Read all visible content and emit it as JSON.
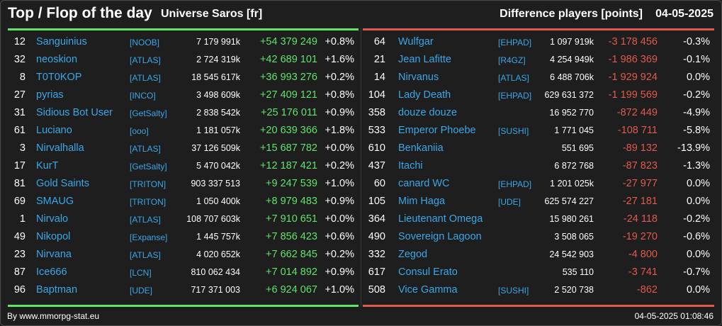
{
  "header": {
    "title": "Top / Flop of the day",
    "subtitle": "Universe Saros [fr]",
    "difference_label": "Difference players [points]",
    "date": "04-05-2025"
  },
  "colors": {
    "positive": "#5fe36b",
    "negative": "#e05a4d",
    "name": "#3aa7e8"
  },
  "top": [
    {
      "rank": "12",
      "name": "Sanguinius",
      "alliance": "[NOOB]",
      "points": "7 179 991k",
      "diff": "+54 379 249",
      "pct": "+0.8%"
    },
    {
      "rank": "32",
      "name": "neoskion",
      "alliance": "[ATLAS]",
      "points": "2 724 319k",
      "diff": "+42 689 101",
      "pct": "+1.6%"
    },
    {
      "rank": "8",
      "name": "T0T0KOP",
      "alliance": "[ATLAS]",
      "points": "18 545 617k",
      "diff": "+36 993 276",
      "pct": "+0.2%"
    },
    {
      "rank": "27",
      "name": "pyrias",
      "alliance": "[INCO]",
      "points": "3 498 609k",
      "diff": "+27 409 121",
      "pct": "+0.8%"
    },
    {
      "rank": "31",
      "name": "Sidious Bot User",
      "alliance": "[GetSalty]",
      "points": "2 838 542k",
      "diff": "+25 176 011",
      "pct": "+0.9%"
    },
    {
      "rank": "61",
      "name": "Luciano",
      "alliance": "[ooo]",
      "points": "1 181 057k",
      "diff": "+20 639 366",
      "pct": "+1.8%"
    },
    {
      "rank": "3",
      "name": "Nirvalhalla",
      "alliance": "[ATLAS]",
      "points": "37 126 509k",
      "diff": "+15 687 782",
      "pct": "+0.0%"
    },
    {
      "rank": "17",
      "name": "KurT",
      "alliance": "[GetSalty]",
      "points": "5 470 042k",
      "diff": "+12 187 421",
      "pct": "+0.2%"
    },
    {
      "rank": "81",
      "name": "Gold Saints",
      "alliance": "[TRITON]",
      "points": "903 337 513",
      "diff": "+9 247 539",
      "pct": "+1.0%"
    },
    {
      "rank": "69",
      "name": "SMAUG",
      "alliance": "[TRITON]",
      "points": "1 050 400k",
      "diff": "+8 979 483",
      "pct": "+0.9%"
    },
    {
      "rank": "1",
      "name": "Nirvalo",
      "alliance": "[ATLAS]",
      "points": "108 707 603k",
      "diff": "+7 910 651",
      "pct": "+0.0%"
    },
    {
      "rank": "49",
      "name": "Nikopol",
      "alliance": "[Expanse]",
      "points": "1 445 757k",
      "diff": "+7 856 423",
      "pct": "+0.6%"
    },
    {
      "rank": "23",
      "name": "Nirvana",
      "alliance": "[ATLAS]",
      "points": "4 020 652k",
      "diff": "+7 662 845",
      "pct": "+0.2%"
    },
    {
      "rank": "87",
      "name": "Ice666",
      "alliance": "[LCN]",
      "points": "810 062 434",
      "diff": "+7 014 892",
      "pct": "+0.9%"
    },
    {
      "rank": "96",
      "name": "Baptman",
      "alliance": "[UDE]",
      "points": "717 371 003",
      "diff": "+6 924 067",
      "pct": "+1.0%"
    }
  ],
  "flop": [
    {
      "rank": "64",
      "name": "Wulfgar",
      "alliance": "[EHPAD]",
      "points": "1 097 919k",
      "diff": "-3 178 456",
      "pct": "-0.3%"
    },
    {
      "rank": "21",
      "name": "Jean Lafitte",
      "alliance": "[R4GZ]",
      "points": "4 254 949k",
      "diff": "-1 986 369",
      "pct": "-0.1%"
    },
    {
      "rank": "14",
      "name": "Nirvanus",
      "alliance": "[ATLAS]",
      "points": "6 488 706k",
      "diff": "-1 929 924",
      "pct": "0.0%"
    },
    {
      "rank": "104",
      "name": "Lady Death",
      "alliance": "[EHPAD]",
      "points": "629 631 372",
      "diff": "-1 199 569",
      "pct": "-0.2%"
    },
    {
      "rank": "358",
      "name": "douze douze",
      "alliance": "",
      "points": "16 952 770",
      "diff": "-872 449",
      "pct": "-4.9%"
    },
    {
      "rank": "533",
      "name": "Emperor Phoebe",
      "alliance": "[SUSHI]",
      "points": "1 771 045",
      "diff": "-108 711",
      "pct": "-5.8%"
    },
    {
      "rank": "610",
      "name": "Benkaniia",
      "alliance": "",
      "points": "551 695",
      "diff": "-89 132",
      "pct": "-13.9%"
    },
    {
      "rank": "437",
      "name": "Itachi",
      "alliance": "",
      "points": "6 872 768",
      "diff": "-87 823",
      "pct": "-1.3%"
    },
    {
      "rank": "60",
      "name": "canard WC",
      "alliance": "[EHPAD]",
      "points": "1 201 025k",
      "diff": "-27 977",
      "pct": "0.0%"
    },
    {
      "rank": "105",
      "name": "Mim Haga",
      "alliance": "[UDE]",
      "points": "625 574 227",
      "diff": "-27 181",
      "pct": "0.0%"
    },
    {
      "rank": "364",
      "name": "Lieutenant Omega",
      "alliance": "",
      "points": "15 980 261",
      "diff": "-24 118",
      "pct": "-0.2%"
    },
    {
      "rank": "490",
      "name": "Sovereign Lagoon",
      "alliance": "",
      "points": "3 508 065",
      "diff": "-19 270",
      "pct": "-0.6%"
    },
    {
      "rank": "332",
      "name": "Zegod",
      "alliance": "",
      "points": "24 542 903",
      "diff": "-4 800",
      "pct": "0.0%"
    },
    {
      "rank": "617",
      "name": "Consul Erato",
      "alliance": "",
      "points": "535 110",
      "diff": "-3 741",
      "pct": "-0.7%"
    },
    {
      "rank": "508",
      "name": "Vice Gamma",
      "alliance": "[SUSHI]",
      "points": "2 520 738",
      "diff": "-862",
      "pct": "0.0%"
    }
  ],
  "footer": {
    "source": "By www.mmorpg-stat.eu",
    "timestamp": "04-05-2025 01:08:46"
  }
}
